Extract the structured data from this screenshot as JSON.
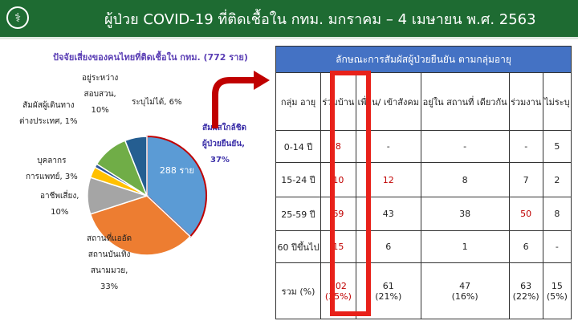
{
  "header": {
    "title": "ผู้ป่วย COVID-19 ที่ติดเชื้อใน กทม. มกราคม – 4 เมษายน พ.ศ. 2563",
    "logo_icon": "ministry-of-health-logo"
  },
  "chart_data": {
    "type": "pie",
    "title": "ปัจจัยเสี่ยงของคนไทยที่ติดเชื้อใน กทม. (772 ราย)",
    "slices": [
      {
        "label": "สัมผัสใกล้ชิด ผู้ป่วยยืนยัน",
        "value": 37,
        "color": "#5b9bd5",
        "data_label": "288 ราย"
      },
      {
        "label": "สถานที่แออัด สถานบันเทิง สนามมวย",
        "value": 33,
        "color": "#ed7d31"
      },
      {
        "label": "อาชีพเสี่ยง",
        "value": 10,
        "color": "#a5a5a5"
      },
      {
        "label": "บุคลากร การแพทย์",
        "value": 3,
        "color": "#ffc000"
      },
      {
        "label": "สัมผัสผู้เดินทาง ต่างประเทศ",
        "value": 1,
        "color": "#2e5597"
      },
      {
        "label": "อยู่ระหว่าง สอบสวน",
        "value": 10,
        "color": "#70ad47"
      },
      {
        "label": "ระบุไม่ได้",
        "value": 6,
        "color": "#255e91"
      }
    ],
    "labels_text": [
      "สัมผัสใกล้ชิด",
      "ผู้ป่วยยืนยัน,",
      "37%",
      "สถานที่แออัด",
      "สถานบันเทิง",
      "สนามมวย,",
      "33%",
      "อาชีพเสี่ยง,",
      "10%",
      "บุคลากร",
      "การแพทย์, 3%",
      "สัมผัสผู้เดินทาง",
      "ต่างประเทศ, 1%",
      "อยู่ระหว่าง",
      "สอบสวน,",
      "10%",
      "ระบุไม่ได้, 6%"
    ]
  },
  "table": {
    "caption": "ลักษณะการสัมผัสผู้ป่วยยืนยัน ตามกลุ่มอายุ",
    "headers": [
      "กลุ่ม อายุ",
      "ร่วมบ้าน",
      "เพื่อน/ เข้าสังคม",
      "อยู่ใน สถานที่ เดียวกัน",
      "ร่วมงาน",
      "ไม่ระบุ"
    ],
    "rows": [
      [
        "0-14 ปี",
        "8",
        "-",
        "-",
        "-",
        "5"
      ],
      [
        "15-24 ปี",
        "10",
        "12",
        "8",
        "7",
        "2"
      ],
      [
        "25-59 ปี",
        "69",
        "43",
        "38",
        "50",
        "8"
      ],
      [
        "60 ปีขึ้นไป",
        "15",
        "6",
        "1",
        "6",
        "-"
      ],
      [
        "รวม (%)",
        "102 (35%)",
        "61 (21%)",
        "47 (16%)",
        "63 (22%)",
        "15 (5%)"
      ]
    ],
    "highlight_color": "#c00000"
  }
}
